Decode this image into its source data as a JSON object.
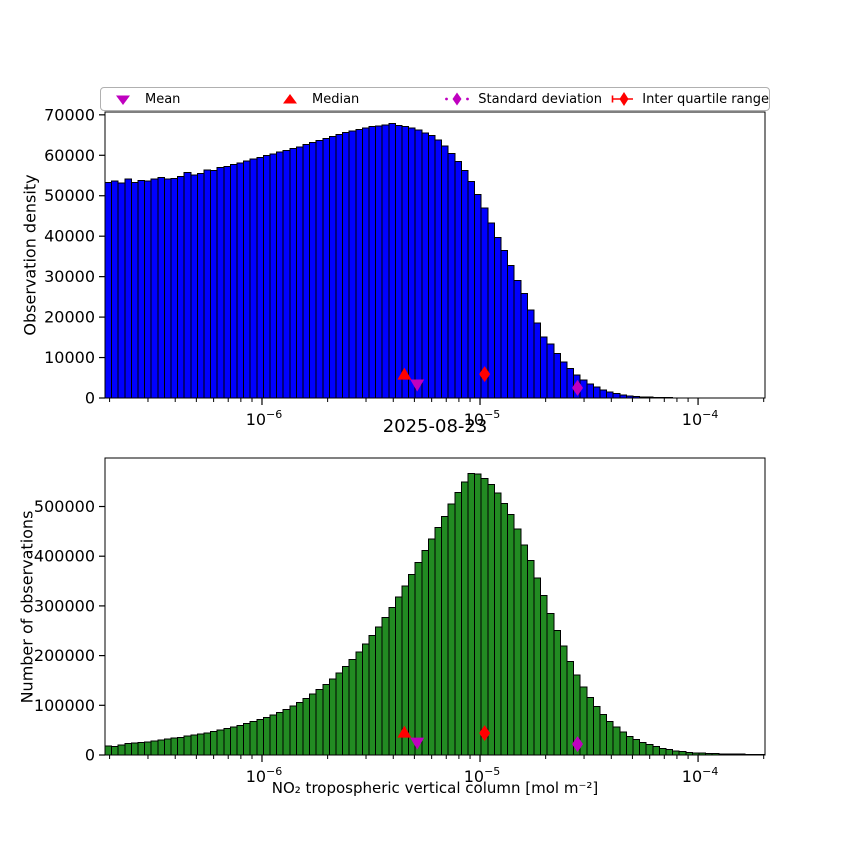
{
  "figure": {
    "title": "2025-08-23",
    "xlabel": "NO₂ tropospheric vertical column [mol m⁻²]",
    "background": "#ffffff"
  },
  "legend": {
    "position": "top, horizontal, expanded above first axes",
    "items": [
      {
        "label": "Mean",
        "marker": "triangle-down",
        "color": "#BF00BF"
      },
      {
        "label": "Median",
        "marker": "triangle-up",
        "color": "#FF0000"
      },
      {
        "label": "Standard deviation",
        "marker": "diamond-dotted-line",
        "color": "#BF00BF"
      },
      {
        "label": "Inter quartile range",
        "marker": "diamond-errorbar-caps",
        "color": "#FF0000"
      }
    ]
  },
  "chart_data": [
    {
      "type": "histogram",
      "name": "density",
      "ylabel": "Observation density",
      "bar_color": "#0000FF",
      "edge_color": "#000000",
      "x_scale": "log",
      "x_range_log10": [
        -6.72,
        -3.693
      ],
      "x_major_tick_exponents": [
        -6,
        -5,
        -4
      ],
      "y_range": [
        0,
        70700
      ],
      "y_ticks": [
        0,
        10000,
        20000,
        30000,
        40000,
        50000,
        60000,
        70000
      ],
      "grid": false,
      "bin_heights": [
        53300,
        53600,
        53100,
        54100,
        53300,
        53800,
        53700,
        54100,
        54500,
        54100,
        54300,
        54700,
        55700,
        55100,
        55500,
        56400,
        56200,
        57000,
        57200,
        57700,
        58100,
        58600,
        59100,
        59500,
        60000,
        60300,
        60800,
        61200,
        61700,
        62100,
        62700,
        63200,
        63700,
        64200,
        64700,
        65200,
        65600,
        66000,
        66400,
        66800,
        67100,
        67300,
        67500,
        67800,
        67400,
        67100,
        66700,
        66300,
        65500,
        64900,
        63800,
        62300,
        60500,
        58500,
        56200,
        53500,
        50300,
        47000,
        43300,
        39700,
        36500,
        32700,
        29000,
        25800,
        21700,
        18500,
        15100,
        13400,
        11000,
        8900,
        7300,
        5700,
        4500,
        3500,
        2700,
        2000,
        1500,
        1100,
        800,
        550,
        400,
        280,
        200,
        140,
        100,
        70,
        50,
        35,
        25,
        18,
        12,
        8,
        6,
        4,
        3,
        2,
        1,
        1,
        0,
        0
      ],
      "markers": [
        {
          "name": "median",
          "shape": "triangle-up",
          "color": "#FF0000",
          "x": 4.5e-06,
          "y": 5900
        },
        {
          "name": "mean",
          "shape": "triangle-down",
          "color": "#BF00BF",
          "x": 5.15e-06,
          "y": 3200
        },
        {
          "name": "iqr",
          "shape": "diamond",
          "color": "#FF0000",
          "x": 1.05e-05,
          "y": 5900
        },
        {
          "name": "std",
          "shape": "diamond",
          "color": "#BF00BF",
          "x": 2.8e-05,
          "y": 2500
        }
      ]
    },
    {
      "type": "histogram",
      "name": "counts",
      "ylabel": "Number of observations",
      "bar_color": "#228B22",
      "edge_color": "#000000",
      "x_scale": "log",
      "x_range_log10": [
        -6.72,
        -3.693
      ],
      "x_major_tick_exponents": [
        -6,
        -5,
        -4
      ],
      "y_range": [
        0,
        597600
      ],
      "y_ticks": [
        0,
        100000,
        200000,
        300000,
        400000,
        500000
      ],
      "grid": false,
      "bin_heights": [
        18500,
        17500,
        20000,
        23500,
        24000,
        25000,
        26500,
        28000,
        30000,
        32000,
        34000,
        35500,
        38000,
        40000,
        42000,
        44500,
        47000,
        50000,
        53000,
        56000,
        59500,
        63000,
        67000,
        71000,
        75500,
        80500,
        86000,
        92000,
        99000,
        106000,
        114000,
        123000,
        132000,
        142000,
        153000,
        165000,
        178000,
        192000,
        207000,
        223000,
        240000,
        258000,
        277000,
        297000,
        318000,
        340000,
        363000,
        387000,
        411000,
        435000,
        458000,
        480000,
        505000,
        528000,
        549000,
        566000,
        565000,
        556000,
        544000,
        527000,
        506000,
        484000,
        455000,
        423000,
        391000,
        356000,
        321000,
        285000,
        251000,
        219000,
        188000,
        161000,
        137000,
        116000,
        97500,
        81500,
        67500,
        56500,
        46000,
        37500,
        31000,
        25500,
        21000,
        17000,
        13500,
        11000,
        8500,
        7000,
        5500,
        4500,
        3800,
        3200,
        2700,
        2300,
        2000,
        1800,
        1600,
        1500,
        1400,
        1300
      ],
      "markers": [
        {
          "name": "median",
          "shape": "triangle-up",
          "color": "#FF0000",
          "x": 4.5e-06,
          "y": 46000
        },
        {
          "name": "mean",
          "shape": "triangle-down",
          "color": "#BF00BF",
          "x": 5.15e-06,
          "y": 24000
        },
        {
          "name": "iqr",
          "shape": "diamond",
          "color": "#FF0000",
          "x": 1.05e-05,
          "y": 44000
        },
        {
          "name": "std",
          "shape": "diamond",
          "color": "#BF00BF",
          "x": 2.8e-05,
          "y": 22000
        }
      ]
    }
  ]
}
